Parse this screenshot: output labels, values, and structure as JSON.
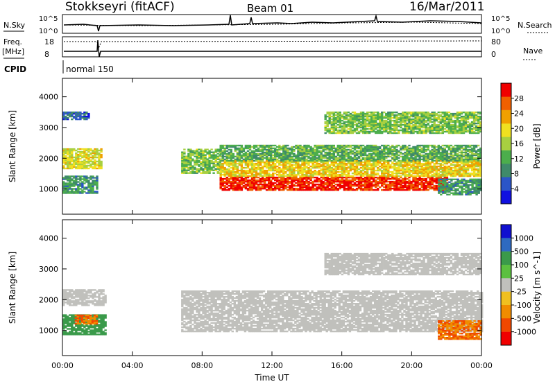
{
  "header": {
    "station": "Stokkseyri (fitACF)",
    "beam": "Beam 01",
    "date": "16/Mar/2011"
  },
  "status_panel": {
    "nsky_label": "N.Sky",
    "nsearch_label": "N.Search",
    "freq_label": "Freq.",
    "freq_unit": "[MHz]",
    "nave_label": "Nave",
    "cpid_label": "CPID",
    "cpid_value": "normal 150",
    "left_ticks_top": [
      "10^5",
      "10^0"
    ],
    "right_ticks_top": [
      "10^5",
      "10^0"
    ],
    "left_ticks_freq": [
      "18",
      "8"
    ],
    "right_ticks_nave": [
      "80",
      "0"
    ]
  },
  "colors": {
    "power_scale": [
      "#1010e0",
      "#2b55c8",
      "#3f8a6a",
      "#4cae4c",
      "#a8d040",
      "#f0e020",
      "#f0a000",
      "#f06000",
      "#f00000"
    ],
    "velocity_scale": [
      "#1010d0",
      "#2e6ac0",
      "#3a9a4a",
      "#5cc040",
      "#c0c0bc",
      "#f0c020",
      "#f08c00",
      "#f04800",
      "#f00000"
    ],
    "ground_scatter": "#c0c0bc"
  },
  "chart_data": [
    {
      "type": "heatmap",
      "title": "Power",
      "xlabel": "Time UT",
      "ylabel": "Slant Range [km]",
      "colorbar_label": "Power [dB]",
      "colorbar_ticks": [
        "4",
        "8",
        "12",
        "16",
        "20",
        "24",
        "28"
      ],
      "xlim": [
        0,
        24
      ],
      "ylim": [
        180,
        4600
      ],
      "x_ticks": [
        "00:00",
        "04:00",
        "08:00",
        "12:00",
        "16:00",
        "20:00",
        "00:00"
      ],
      "y_ticks": [
        "1000",
        "2000",
        "3000",
        "4000"
      ],
      "regions": [
        {
          "t0": 0.0,
          "t1": 2.2,
          "r0": 1650,
          "r1": 2300,
          "value": 18
        },
        {
          "t0": 0.0,
          "t1": 2.0,
          "r0": 850,
          "r1": 1400,
          "value": 10
        },
        {
          "t0": 0.0,
          "t1": 1.5,
          "r0": 3250,
          "r1": 3500,
          "value": 6
        },
        {
          "t0": 6.8,
          "t1": 9.0,
          "r0": 1500,
          "r1": 2300,
          "value": 14
        },
        {
          "t0": 9.0,
          "t1": 22.0,
          "r0": 950,
          "r1": 1400,
          "value": 29
        },
        {
          "t0": 9.0,
          "t1": 24.0,
          "r0": 1400,
          "r1": 1900,
          "value": 20
        },
        {
          "t0": 9.0,
          "t1": 24.0,
          "r0": 1900,
          "r1": 2400,
          "value": 12
        },
        {
          "t0": 15.0,
          "t1": 24.0,
          "r0": 2800,
          "r1": 3500,
          "value": 14
        },
        {
          "t0": 21.5,
          "t1": 24.0,
          "r0": 800,
          "r1": 1300,
          "value": 10
        }
      ]
    },
    {
      "type": "heatmap",
      "title": "Velocity",
      "xlabel": "Time UT",
      "ylabel": "Slant Range [km]",
      "colorbar_label": "Velocity [m s^-1]",
      "colorbar_ticks": [
        "1000",
        "500",
        "100",
        "25",
        "-25",
        "-100",
        "-500",
        "-1000"
      ],
      "xlim": [
        0,
        24
      ],
      "ylim": [
        180,
        4600
      ],
      "x_ticks": [
        "00:00",
        "04:00",
        "08:00",
        "12:00",
        "16:00",
        "20:00",
        "00:00"
      ],
      "y_ticks": [
        "1000",
        "2000",
        "3000",
        "4000"
      ],
      "regions": [
        {
          "t0": 0.0,
          "t1": 2.5,
          "r0": 1800,
          "r1": 2300,
          "value": 0
        },
        {
          "t0": 0.0,
          "t1": 2.5,
          "r0": 850,
          "r1": 1500,
          "value": 200
        },
        {
          "t0": 0.7,
          "t1": 2.0,
          "r0": 1200,
          "r1": 1500,
          "value": -500
        },
        {
          "t0": 6.8,
          "t1": 24.0,
          "r0": 950,
          "r1": 2300,
          "value": 0
        },
        {
          "t0": 15.0,
          "t1": 24.0,
          "r0": 2800,
          "r1": 3500,
          "value": 0
        },
        {
          "t0": 21.5,
          "t1": 24.0,
          "r0": 700,
          "r1": 1300,
          "value": -500
        }
      ]
    }
  ]
}
